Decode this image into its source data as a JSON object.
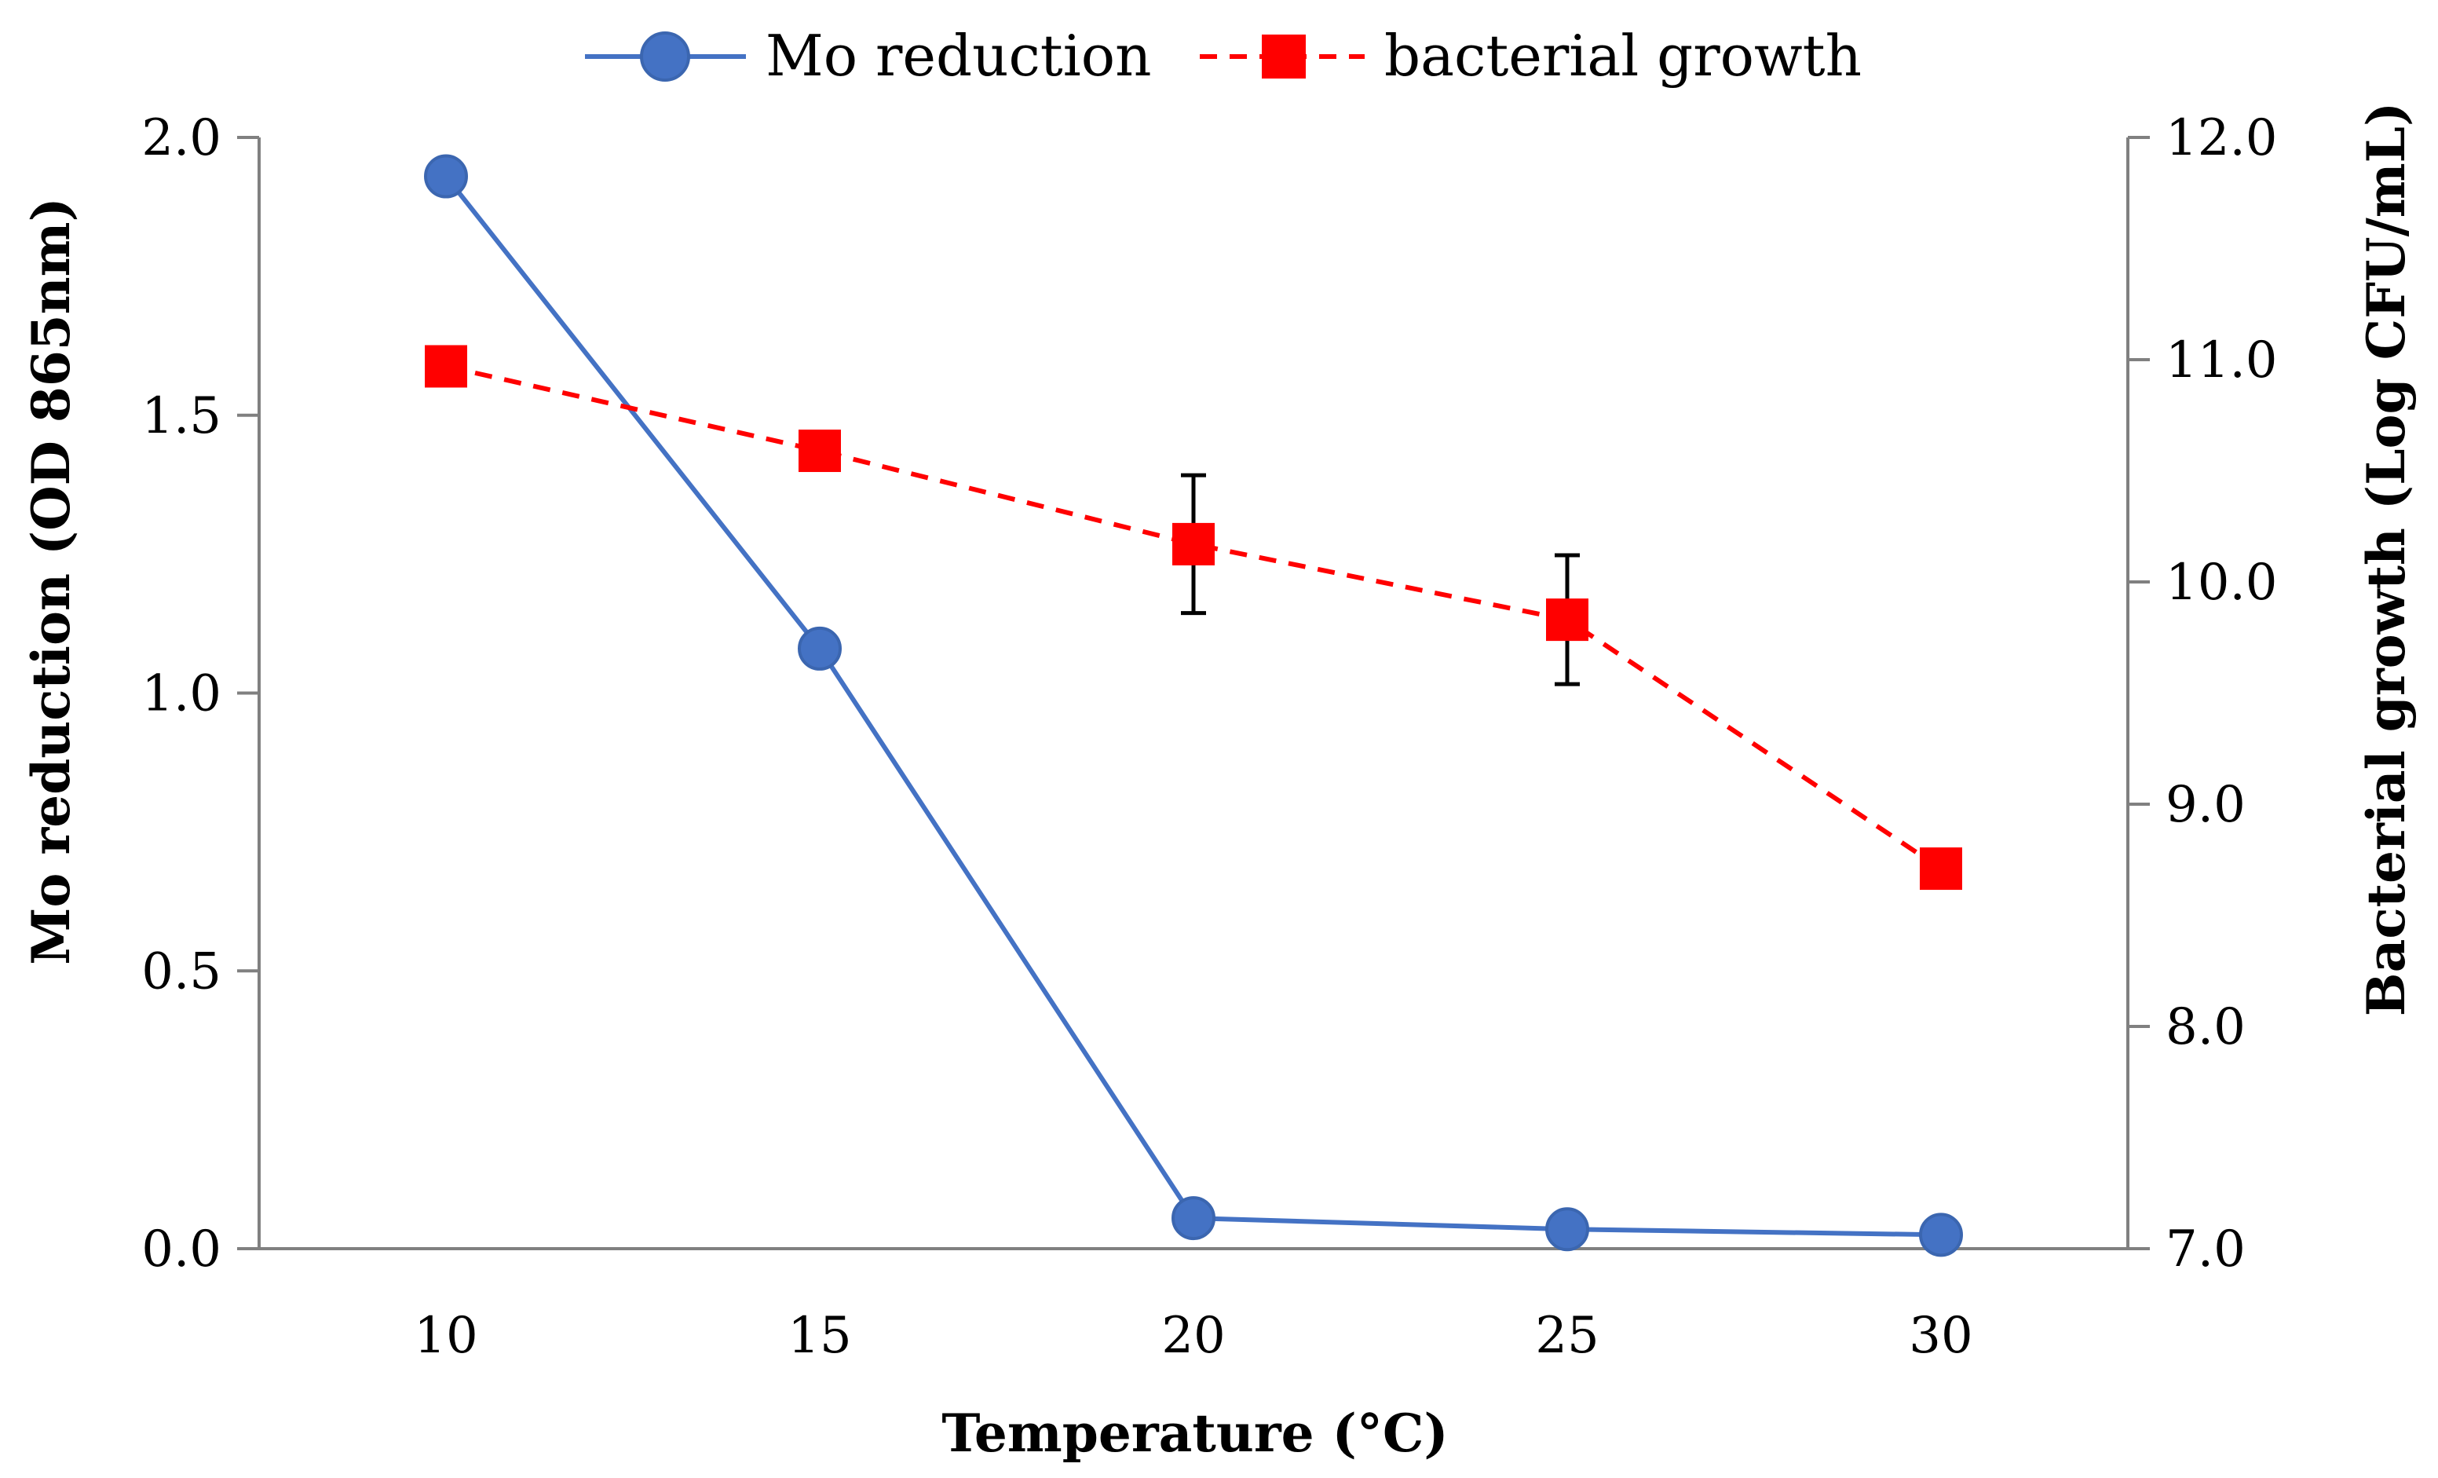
{
  "chart_data": {
    "type": "line",
    "title": "",
    "x": [
      10,
      15,
      20,
      25,
      30
    ],
    "x_tick_labels": [
      "10",
      "15",
      "20",
      "25",
      "30"
    ],
    "xlabel": "Temperature (°C)",
    "ylabel": "Mo reduction (OD 865nm)",
    "ylabel_right": "Bacterial growth (Log CFU/mL)",
    "xlim": [
      7.5,
      32.5
    ],
    "ylim": [
      0.0,
      2.0
    ],
    "ylim_right": [
      7.0,
      12.0
    ],
    "y_ticks": [
      0.0,
      0.5,
      1.0,
      1.5,
      2.0
    ],
    "y_tick_labels": [
      "0.0",
      "0.5",
      "1.0",
      "1.5",
      "2.0"
    ],
    "y_right_ticks": [
      7.0,
      8.0,
      9.0,
      10.0,
      11.0,
      12.0
    ],
    "y_right_tick_labels": [
      "7.0",
      "8.0",
      "9.0",
      "10.0",
      "11.0",
      "12.0"
    ],
    "grid": false,
    "legend_position": "top-center",
    "series": [
      {
        "name": "Mo reduction",
        "axis": "left",
        "values": [
          1.93,
          1.08,
          0.055,
          0.035,
          0.025
        ],
        "color": "#4472C4",
        "line_style": "solid",
        "marker": "circle",
        "error": [
          0,
          0,
          0,
          0,
          0
        ]
      },
      {
        "name": "bacterial growth",
        "axis": "right",
        "values": [
          10.97,
          10.59,
          10.17,
          9.83,
          8.71
        ],
        "color": "#FF0000",
        "line_style": "dashed",
        "marker": "square",
        "error": [
          0,
          0,
          0.31,
          0.29,
          0
        ]
      }
    ]
  }
}
